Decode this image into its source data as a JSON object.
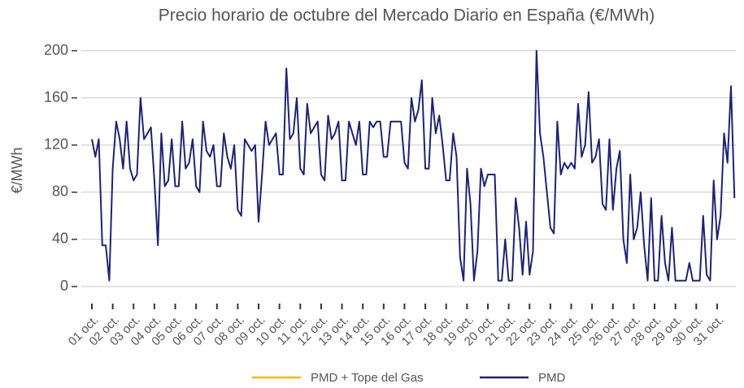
{
  "chart_data": {
    "type": "line",
    "title": "Precio horario de octubre del Mercado Diario en España (€/MWh)",
    "y_label": "€/MWh",
    "xlim": [
      1,
      31.9
    ],
    "xticks": [
      {
        "value": 1,
        "label": "01 oct."
      },
      {
        "value": 2,
        "label": "02 oct."
      },
      {
        "value": 3,
        "label": "03 oct."
      },
      {
        "value": 4,
        "label": "04 oct."
      },
      {
        "value": 5,
        "label": "05 oct."
      },
      {
        "value": 6,
        "label": "06 oct."
      },
      {
        "value": 7,
        "label": "07 oct."
      },
      {
        "value": 8,
        "label": "08 oct."
      },
      {
        "value": 9,
        "label": "09 oct."
      },
      {
        "value": 10,
        "label": "10 oct."
      },
      {
        "value": 11,
        "label": "11 oct."
      },
      {
        "value": 12,
        "label": "12 oct."
      },
      {
        "value": 13,
        "label": "13 oct."
      },
      {
        "value": 14,
        "label": "14 oct."
      },
      {
        "value": 15,
        "label": "15 oct."
      },
      {
        "value": 16,
        "label": "16 oct."
      },
      {
        "value": 17,
        "label": "17 oct."
      },
      {
        "value": 18,
        "label": "18 oct."
      },
      {
        "value": 19,
        "label": "19 oct."
      },
      {
        "value": 20,
        "label": "20 oct."
      },
      {
        "value": 21,
        "label": "21 oct."
      },
      {
        "value": 22,
        "label": "22 oct."
      },
      {
        "value": 23,
        "label": "23 oct."
      },
      {
        "value": 24,
        "label": "24 oct."
      },
      {
        "value": 25,
        "label": "25 oct."
      },
      {
        "value": 26,
        "label": "26 oct."
      },
      {
        "value": 27,
        "label": "27 oct."
      },
      {
        "value": 28,
        "label": "28 oct."
      },
      {
        "value": 29,
        "label": "29 oct."
      },
      {
        "value": 30,
        "label": "30 oct."
      },
      {
        "value": 31,
        "label": "31 oct."
      }
    ],
    "ylim": [
      0,
      210
    ],
    "yticks": [
      0,
      40,
      80,
      120,
      160,
      200
    ],
    "grid": true,
    "legend": "bottom",
    "x": [
      1,
      1.167,
      1.333,
      1.5,
      1.667,
      1.833,
      2,
      2.167,
      2.333,
      2.5,
      2.667,
      2.833,
      3,
      3.167,
      3.333,
      3.5,
      3.667,
      3.833,
      4,
      4.167,
      4.333,
      4.5,
      4.667,
      4.833,
      5,
      5.167,
      5.333,
      5.5,
      5.667,
      5.833,
      6,
      6.167,
      6.333,
      6.5,
      6.667,
      6.833,
      7,
      7.167,
      7.333,
      7.5,
      7.667,
      7.833,
      8,
      8.167,
      8.333,
      8.5,
      8.667,
      8.833,
      9,
      9.167,
      9.333,
      9.5,
      9.667,
      9.833,
      10,
      10.167,
      10.333,
      10.5,
      10.667,
      10.833,
      11,
      11.167,
      11.333,
      11.5,
      11.667,
      11.833,
      12,
      12.167,
      12.333,
      12.5,
      12.667,
      12.833,
      13,
      13.167,
      13.333,
      13.5,
      13.667,
      13.833,
      14,
      14.167,
      14.333,
      14.5,
      14.667,
      14.833,
      15,
      15.167,
      15.333,
      15.5,
      15.667,
      15.833,
      16,
      16.167,
      16.333,
      16.5,
      16.667,
      16.833,
      17,
      17.167,
      17.333,
      17.5,
      17.667,
      17.833,
      18,
      18.167,
      18.333,
      18.5,
      18.667,
      18.833,
      19,
      19.167,
      19.333,
      19.5,
      19.667,
      19.833,
      20,
      20.167,
      20.333,
      20.5,
      20.667,
      20.833,
      21,
      21.167,
      21.333,
      21.5,
      21.667,
      21.833,
      22,
      22.167,
      22.333,
      22.5,
      22.667,
      22.833,
      23,
      23.167,
      23.333,
      23.5,
      23.667,
      23.833,
      24,
      24.167,
      24.333,
      24.5,
      24.667,
      24.833,
      25,
      25.167,
      25.333,
      25.5,
      25.667,
      25.833,
      26,
      26.167,
      26.333,
      26.5,
      26.667,
      26.833,
      27,
      27.167,
      27.333,
      27.5,
      27.667,
      27.833,
      28,
      28.167,
      28.333,
      28.5,
      28.667,
      28.833,
      29,
      29.167,
      29.333,
      29.5,
      29.667,
      29.833,
      30,
      30.167,
      30.333,
      30.5,
      30.667,
      30.833,
      31,
      31.167,
      31.333,
      31.5,
      31.667,
      31.833
    ],
    "series": [
      {
        "name": "PMD + Tope del Gas",
        "color": "#f5b800",
        "values": [
          null,
          null,
          null,
          null,
          null,
          null,
          null,
          null,
          null,
          null,
          null,
          null,
          null,
          null,
          null,
          null,
          null,
          null,
          null,
          null,
          null,
          null,
          null,
          null,
          null,
          null,
          null,
          null,
          null,
          null,
          null,
          null,
          null,
          null,
          null,
          null,
          null,
          null,
          null,
          null,
          null,
          null,
          null,
          null,
          null,
          null,
          null,
          null,
          null,
          null,
          null,
          null,
          null,
          null,
          null,
          null,
          null,
          null,
          null,
          null,
          null,
          null,
          null,
          null,
          null,
          null,
          null,
          null,
          null,
          null,
          null,
          null,
          null,
          null,
          null,
          null,
          null,
          null,
          null,
          null,
          null,
          null,
          null,
          null,
          null,
          null,
          null,
          null,
          null,
          null,
          null,
          null,
          null,
          null,
          null,
          null,
          null,
          null,
          null,
          null,
          null,
          null,
          null,
          null,
          null,
          null,
          null,
          null,
          null,
          null,
          null,
          null,
          null,
          null,
          null,
          null,
          null,
          null,
          null,
          null,
          null,
          null,
          null,
          null,
          null,
          null,
          null,
          null,
          null,
          null,
          null,
          null,
          null,
          null,
          null,
          null,
          null,
          null,
          null,
          null,
          null,
          null,
          null,
          null,
          null,
          null,
          null,
          null,
          null,
          null,
          null,
          null,
          null,
          null,
          null,
          null,
          null,
          null,
          null,
          null,
          null,
          null,
          null,
          null,
          null,
          null,
          null,
          null,
          null,
          null,
          null,
          null,
          null,
          null,
          null,
          null,
          null,
          null,
          null,
          null,
          null,
          null,
          null,
          null,
          null,
          null
        ]
      },
      {
        "name": "PMD",
        "color": "#1f2372",
        "values": [
          125,
          110,
          125,
          35,
          35,
          5,
          100,
          140,
          125,
          100,
          140,
          100,
          90,
          95,
          160,
          125,
          130,
          135,
          90,
          35,
          130,
          85,
          90,
          125,
          85,
          85,
          140,
          100,
          105,
          125,
          85,
          80,
          140,
          115,
          110,
          120,
          85,
          85,
          130,
          110,
          100,
          120,
          65,
          60,
          125,
          120,
          115,
          120,
          55,
          95,
          140,
          120,
          125,
          130,
          95,
          95,
          185,
          125,
          130,
          160,
          100,
          95,
          155,
          130,
          135,
          140,
          95,
          90,
          145,
          125,
          130,
          140,
          90,
          90,
          140,
          130,
          120,
          140,
          95,
          95,
          140,
          135,
          140,
          140,
          110,
          110,
          140,
          140,
          140,
          140,
          105,
          100,
          160,
          140,
          150,
          175,
          100,
          100,
          160,
          130,
          145,
          120,
          90,
          90,
          130,
          110,
          25,
          5,
          100,
          70,
          5,
          30,
          100,
          85,
          95,
          95,
          95,
          5,
          5,
          40,
          5,
          5,
          75,
          50,
          10,
          55,
          10,
          30,
          200,
          130,
          110,
          80,
          50,
          45,
          140,
          95,
          105,
          100,
          105,
          100,
          155,
          110,
          120,
          165,
          105,
          110,
          125,
          70,
          65,
          125,
          65,
          100,
          115,
          40,
          20,
          95,
          40,
          50,
          80,
          35,
          5,
          75,
          5,
          5,
          60,
          20,
          5,
          50,
          5,
          5,
          5,
          5,
          20,
          5,
          5,
          5,
          60,
          10,
          5,
          90,
          40,
          60,
          130,
          105,
          170,
          75
        ]
      }
    ]
  }
}
